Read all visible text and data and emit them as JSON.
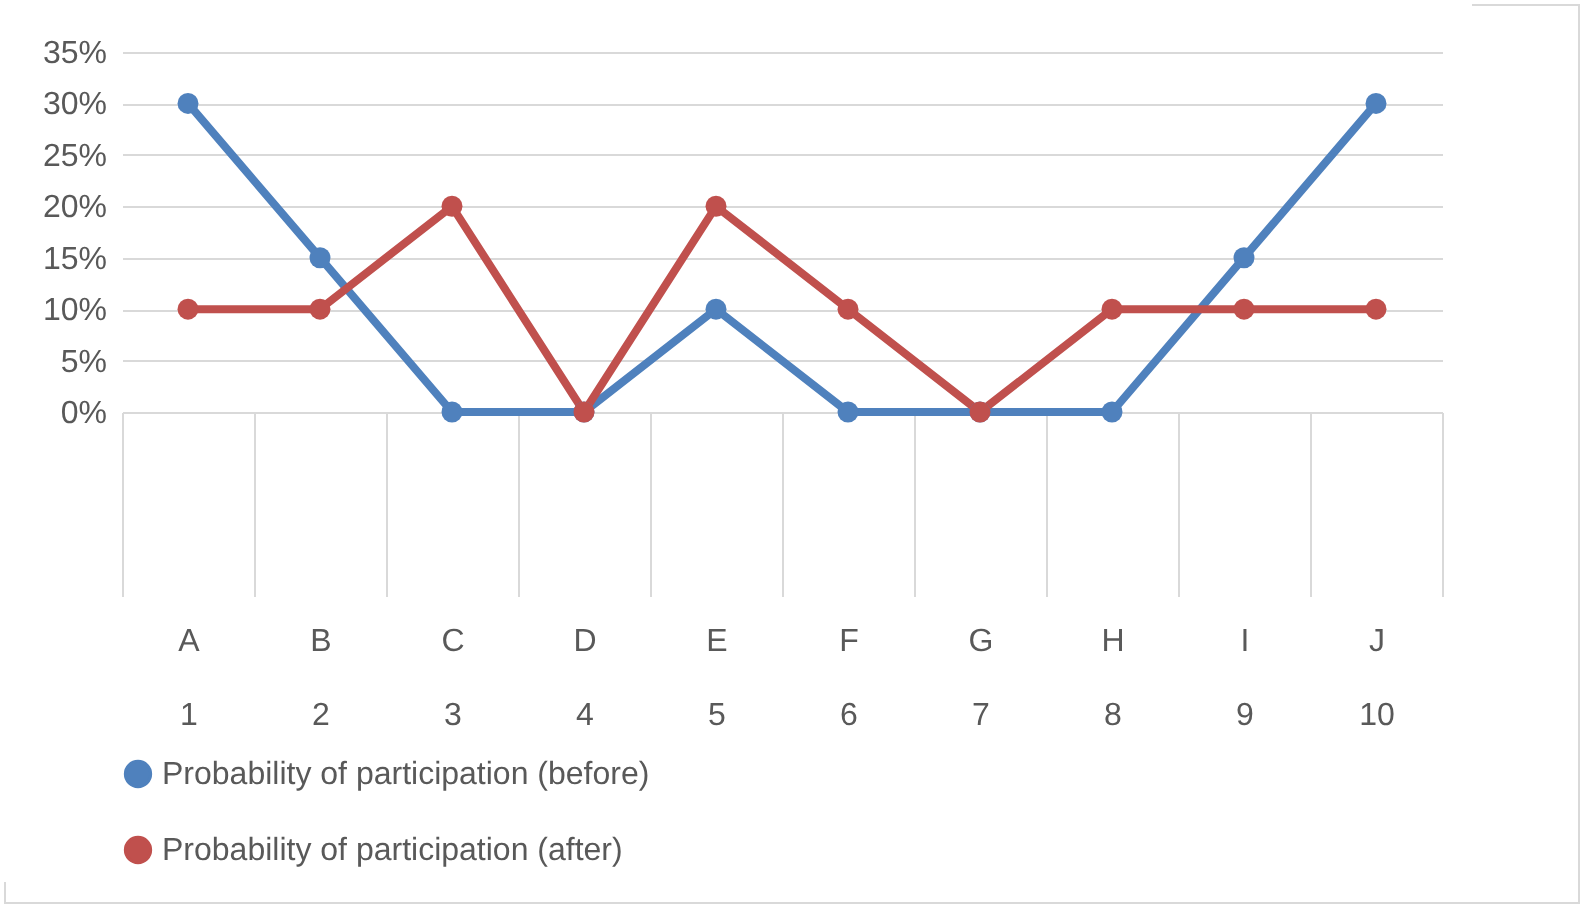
{
  "chart_data": {
    "type": "line",
    "categories": [
      "A\n1",
      "B\n2",
      "C\n3",
      "D\n4",
      "E\n5",
      "F\n6",
      "G\n7",
      "H\n8",
      "I\n9",
      "J\n10"
    ],
    "series": [
      {
        "name": "Probability of participation (before)",
        "color": "#4f81bd",
        "values": [
          30,
          15,
          0,
          0,
          10,
          0,
          0,
          0,
          15,
          30
        ]
      },
      {
        "name": "Probability of participation (after)",
        "color": "#c0504d",
        "values": [
          10,
          10,
          20,
          0,
          20,
          10,
          0,
          10,
          10,
          10
        ]
      }
    ],
    "ylim": [
      0,
      35
    ],
    "yticks": [
      {
        "value": 0,
        "label": "0%"
      },
      {
        "value": 5,
        "label": "5%"
      },
      {
        "value": 10,
        "label": "10%"
      },
      {
        "value": 15,
        "label": "15%"
      },
      {
        "value": 20,
        "label": "20%"
      },
      {
        "value": 25,
        "label": "25%"
      },
      {
        "value": 30,
        "label": "30%"
      },
      {
        "value": 35,
        "label": "35%"
      }
    ],
    "grid": "y",
    "legend": "bottom",
    "marker": "circle",
    "line_style": "solid"
  }
}
